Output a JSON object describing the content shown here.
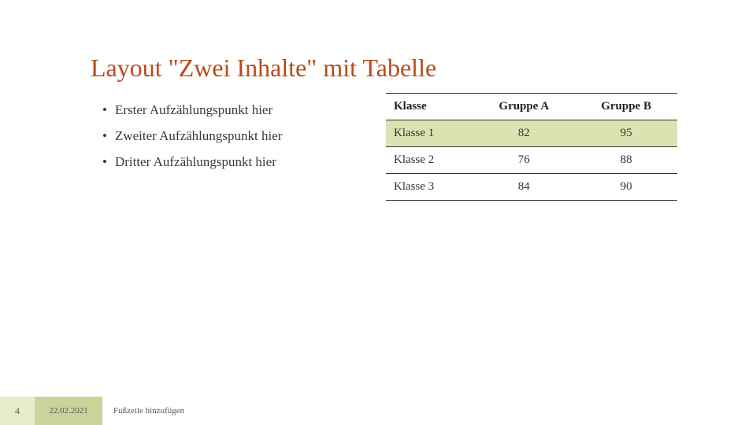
{
  "title": "Layout \"Zwei Inhalte\" mit Tabelle",
  "title_color": "#b84a1a",
  "bullets": [
    "Erster Aufzählungspunkt hier",
    "Zweiter Aufzählungspunkt hier",
    "Dritter Aufzählungspunkt hier"
  ],
  "table": {
    "columns": [
      "Klasse",
      "Gruppe A",
      "Gruppe B"
    ],
    "rows": [
      [
        "Klasse 1",
        "82",
        "95"
      ],
      [
        "Klasse 2",
        "76",
        "88"
      ],
      [
        "Klasse 3",
        "84",
        "90"
      ]
    ],
    "highlight_row_index": 0,
    "highlight_bg": "#dce3b3",
    "border_color": "#333333",
    "col_align": [
      "left",
      "center",
      "center"
    ]
  },
  "footer": {
    "page_number": "4",
    "date": "22.02.2021",
    "text": "Fußzeile hinzufügen",
    "page_bg": "#e7eccb",
    "date_bg": "#c9d49a"
  }
}
